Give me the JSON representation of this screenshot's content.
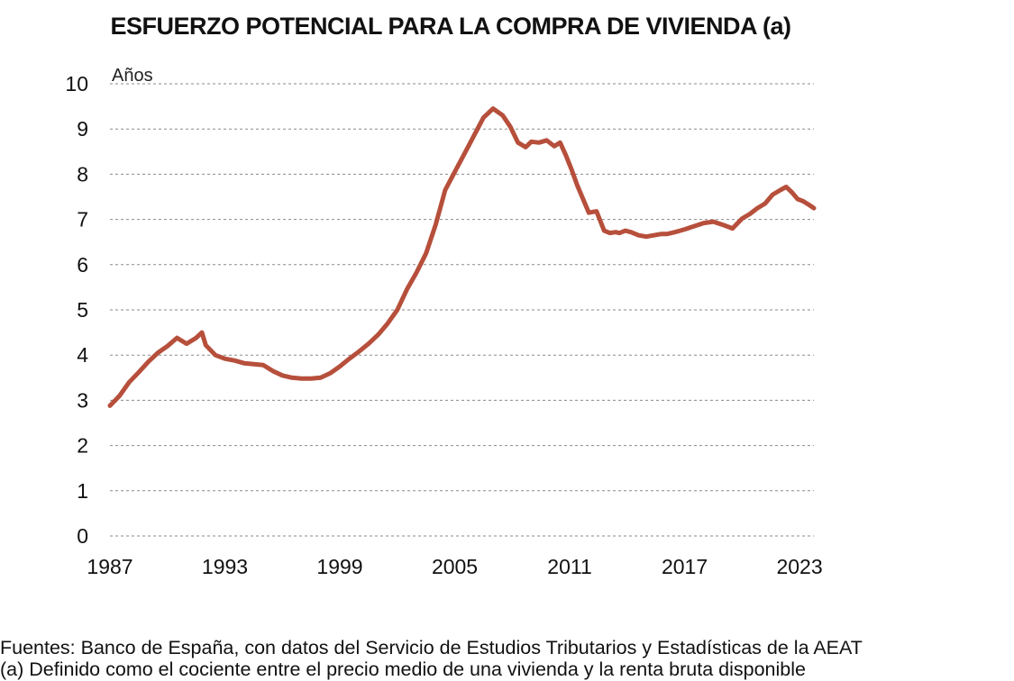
{
  "chart_data": {
    "type": "line",
    "title": "ESFUERZO POTENCIAL PARA LA COMPRA DE VIVIENDA (a)",
    "ylabel": "Años",
    "xlabel": "",
    "ylim": [
      0,
      10
    ],
    "xlim": [
      1987,
      2023.75
    ],
    "yticks": [
      0,
      1,
      2,
      3,
      4,
      5,
      6,
      7,
      8,
      9,
      10
    ],
    "xticks": [
      1987,
      1993,
      1999,
      2005,
      2011,
      2017,
      2023
    ],
    "grid": "horizontal dotted",
    "legend": "none",
    "series": [
      {
        "color": "#b64f3b",
        "x": [
          1987.0,
          1987.5,
          1988.0,
          1988.5,
          1989.0,
          1989.5,
          1990.0,
          1990.5,
          1991.0,
          1991.5,
          1991.8,
          1992.0,
          1992.5,
          1993.0,
          1993.5,
          1994.0,
          1994.5,
          1995.0,
          1995.5,
          1996.0,
          1996.5,
          1997.0,
          1997.5,
          1998.0,
          1998.5,
          1999.0,
          1999.5,
          2000.0,
          2000.5,
          2001.0,
          2001.5,
          2002.0,
          2002.5,
          2003.0,
          2003.5,
          2004.0,
          2004.5,
          2005.0,
          2005.5,
          2006.0,
          2006.5,
          2007.0,
          2007.5,
          2007.9,
          2008.3,
          2008.7,
          2009.0,
          2009.4,
          2009.8,
          2010.2,
          2010.5,
          2010.8,
          2011.1,
          2011.4,
          2011.7,
          2012.0,
          2012.4,
          2012.8,
          2013.1,
          2013.4,
          2013.6,
          2013.9,
          2014.2,
          2014.6,
          2015.0,
          2015.4,
          2015.8,
          2016.1,
          2016.5,
          2017.0,
          2017.5,
          2018.0,
          2018.5,
          2019.0,
          2019.5,
          2020.0,
          2020.4,
          2020.8,
          2021.2,
          2021.6,
          2022.0,
          2022.3,
          2022.6,
          2022.9,
          2023.2,
          2023.5,
          2023.75
        ],
        "values": [
          2.88,
          3.1,
          3.4,
          3.62,
          3.85,
          4.05,
          4.2,
          4.38,
          4.25,
          4.38,
          4.5,
          4.22,
          4.0,
          3.92,
          3.88,
          3.82,
          3.8,
          3.78,
          3.65,
          3.55,
          3.5,
          3.48,
          3.48,
          3.5,
          3.6,
          3.75,
          3.92,
          4.08,
          4.25,
          4.45,
          4.7,
          5.0,
          5.45,
          5.82,
          6.25,
          6.88,
          7.65,
          8.05,
          8.45,
          8.85,
          9.25,
          9.45,
          9.3,
          9.05,
          8.7,
          8.6,
          8.72,
          8.7,
          8.75,
          8.62,
          8.7,
          8.42,
          8.1,
          7.75,
          7.45,
          7.15,
          7.18,
          6.75,
          6.7,
          6.72,
          6.7,
          6.75,
          6.72,
          6.65,
          6.62,
          6.65,
          6.68,
          6.68,
          6.72,
          6.78,
          6.85,
          6.92,
          6.95,
          6.88,
          6.8,
          7.02,
          7.12,
          7.25,
          7.35,
          7.55,
          7.65,
          7.72,
          7.6,
          7.45,
          7.4,
          7.32,
          7.25
        ]
      }
    ]
  },
  "footer": {
    "source": "Fuentes: Banco de España, con datos del Servicio de Estudios Tributarios y Estadísticas de la AEAT",
    "note": "(a) Definido como el cociente entre el precio medio de una vivienda y la renta bruta disponible"
  }
}
